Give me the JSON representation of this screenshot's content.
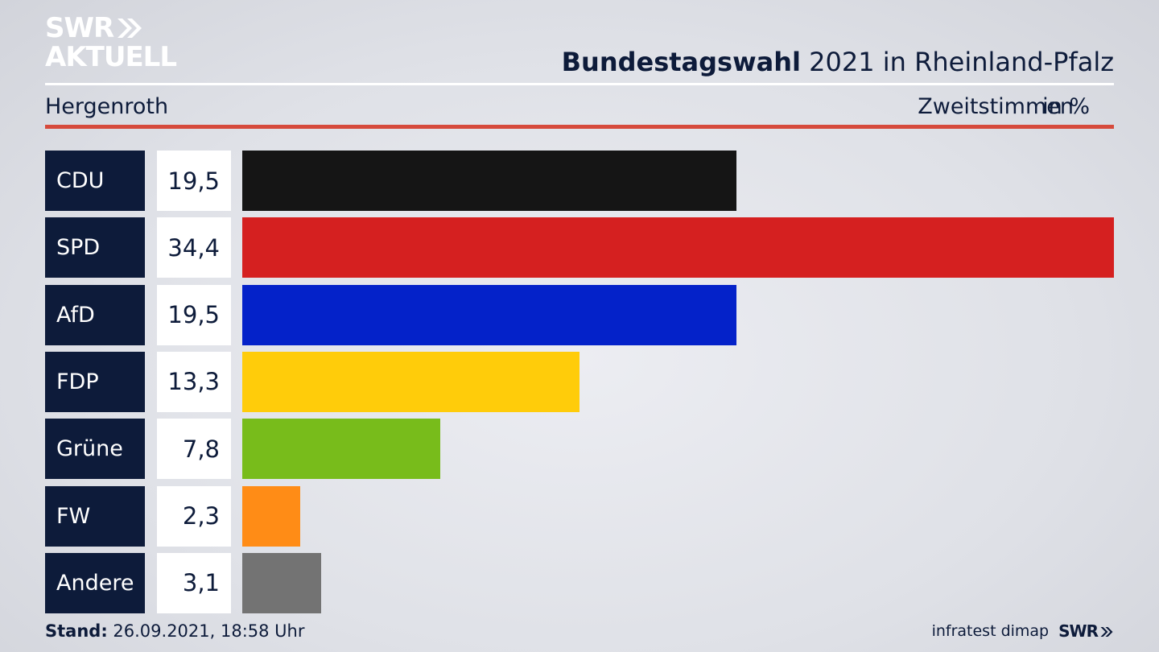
{
  "header": {
    "logo_line1": "SWR",
    "logo_line2": "AKTUELL",
    "title_bold": "Bundestagswahl",
    "title_rest": " 2021 in Rheinland-Pfalz",
    "region": "Hergenroth",
    "votes_label": "Zweitstimmen",
    "unit_label": "in %"
  },
  "chart_data": {
    "type": "bar",
    "orientation": "horizontal",
    "categories": [
      "CDU",
      "SPD",
      "AfD",
      "FDP",
      "Grüne",
      "FW",
      "Andere"
    ],
    "values": [
      19.5,
      34.4,
      19.5,
      13.3,
      7.8,
      2.3,
      3.1
    ],
    "value_labels": [
      "19,5",
      "34,4",
      "19,5",
      "13,3",
      "7,8",
      "2,3",
      "3,1"
    ],
    "colors": [
      "#151515",
      "#d52020",
      "#0422c9",
      "#ffcc0a",
      "#78bc1b",
      "#ff8c16",
      "#737373"
    ],
    "xlim": [
      0,
      34.4
    ],
    "grid": false
  },
  "footer": {
    "stand_label": "Stand:",
    "stand_value": " 26.09.2021, 18:58 Uhr",
    "source": "infratest dimap",
    "logo": "SWR"
  },
  "colors": {
    "navy": "#0d1b3a",
    "accent_red": "#d64a3c"
  }
}
